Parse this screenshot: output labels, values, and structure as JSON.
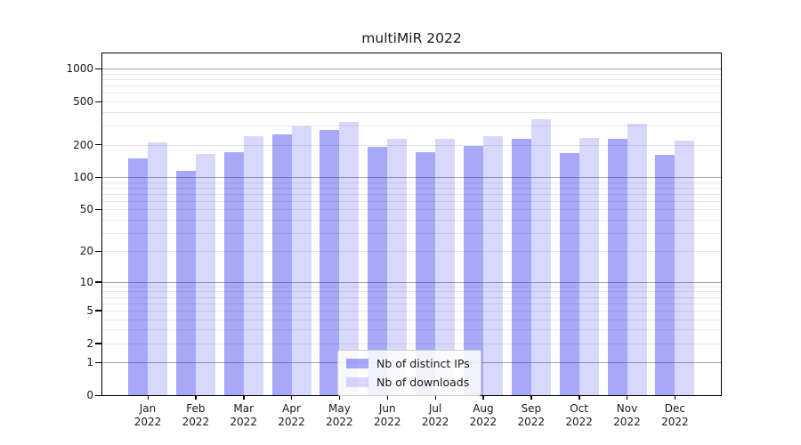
{
  "title": "multiMiR 2022",
  "chart_data": {
    "type": "bar",
    "title": "multiMiR 2022",
    "categories": [
      "Jan 2022",
      "Feb 2022",
      "Mar 2022",
      "Apr 2022",
      "May 2022",
      "Jun 2022",
      "Jul 2022",
      "Aug 2022",
      "Sep 2022",
      "Oct 2022",
      "Nov 2022",
      "Dec 2022"
    ],
    "series": [
      {
        "name": "Nb of distinct IPs",
        "color": "rgba(20,20,240,0.37)",
        "values": [
          150,
          114,
          171,
          247,
          275,
          191,
          171,
          195,
          228,
          168,
          228,
          161
        ]
      },
      {
        "name": "Nb of downloads",
        "color": "rgba(20,20,240,0.165)",
        "values": [
          211,
          163,
          240,
          297,
          326,
          228,
          228,
          241,
          345,
          231,
          310,
          217
        ]
      }
    ],
    "xlabel": "",
    "ylabel": "",
    "y_axis": {
      "scale": "log1p",
      "tick_values": [
        0,
        1,
        2,
        5,
        10,
        20,
        50,
        100,
        200,
        500,
        1000
      ],
      "gridlines_major": [
        1,
        10,
        100,
        1000
      ],
      "gridlines_minor": [
        2,
        3,
        4,
        5,
        6,
        7,
        8,
        9,
        20,
        30,
        40,
        50,
        60,
        70,
        80,
        90,
        200,
        300,
        400,
        500,
        600,
        700,
        800,
        900
      ],
      "ylim": [
        0,
        1200
      ]
    },
    "legend": {
      "position": "lower-center",
      "entries": [
        "Nb of distinct IPs",
        "Nb of downloads"
      ]
    },
    "grid": true
  },
  "colors": {
    "bar_distinct_ips": "rgba(20,20,240,0.37)",
    "bar_downloads": "rgba(20,20,240,0.165)",
    "grid_major": "#a6a6a6",
    "grid_minor": "#e7e7e7",
    "axis": "#000000",
    "text": "#1a1a1a"
  }
}
